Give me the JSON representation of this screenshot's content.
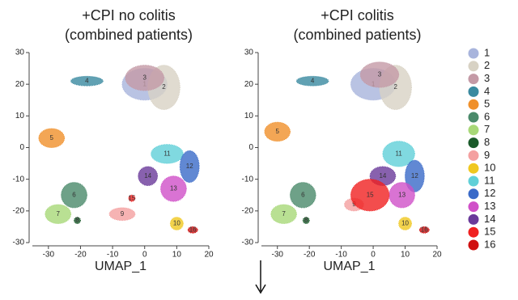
{
  "chart_data": [
    {
      "type": "scatter",
      "title": "+CPI no colitis",
      "subtitle": "(combined patients)",
      "xlabel": "UMAP_1",
      "xlim": [
        -35,
        20
      ],
      "ylim": [
        -30,
        30
      ],
      "xticks": [
        -30,
        -20,
        -10,
        0,
        10,
        20
      ],
      "yticks": [
        -30,
        -20,
        -10,
        0,
        10,
        20,
        30
      ],
      "series": [
        {
          "name": "1",
          "color": "#a8b4dc",
          "x": [
            0
          ],
          "values": [
            20
          ]
        },
        {
          "name": "2",
          "color": "#d8d2c4",
          "x": [
            6
          ],
          "values": [
            19
          ]
        },
        {
          "name": "3",
          "color": "#c49aa6",
          "x": [
            0
          ],
          "values": [
            22
          ]
        },
        {
          "name": "4",
          "color": "#3a8aa0",
          "x": [
            -18
          ],
          "values": [
            21
          ]
        },
        {
          "name": "5",
          "color": "#f0902a",
          "x": [
            -29
          ],
          "values": [
            3
          ]
        },
        {
          "name": "6",
          "color": "#4a8a6a",
          "x": [
            -22
          ],
          "values": [
            -15
          ]
        },
        {
          "name": "7",
          "color": "#a8d878",
          "x": [
            -27
          ],
          "values": [
            -21
          ]
        },
        {
          "name": "8",
          "color": "#1a5a2a",
          "x": [
            -21
          ],
          "values": [
            -23
          ]
        },
        {
          "name": "9",
          "color": "#f4a0a0",
          "x": [
            -7
          ],
          "values": [
            -21
          ]
        },
        {
          "name": "10",
          "color": "#f0c820",
          "x": [
            10
          ],
          "values": [
            -24
          ]
        },
        {
          "name": "11",
          "color": "#60d0d8",
          "x": [
            7
          ],
          "values": [
            -2
          ]
        },
        {
          "name": "12",
          "color": "#3a6ac8",
          "x": [
            14
          ],
          "values": [
            -6
          ]
        },
        {
          "name": "13",
          "color": "#d050c8",
          "x": [
            9
          ],
          "values": [
            -13
          ]
        },
        {
          "name": "14",
          "color": "#6a3a9a",
          "x": [
            1
          ],
          "values": [
            -9
          ]
        },
        {
          "name": "15",
          "color": "#f02020",
          "x": [
            -4
          ],
          "values": [
            -16
          ]
        },
        {
          "name": "16",
          "color": "#d01010",
          "x": [
            15
          ],
          "values": [
            -26
          ]
        }
      ]
    },
    {
      "type": "scatter",
      "title": "+CPI colitis",
      "subtitle": "(combined patients)",
      "xlabel": "UMAP_1",
      "xlim": [
        -35,
        20
      ],
      "ylim": [
        -30,
        30
      ],
      "xticks": [
        -30,
        -20,
        -10,
        0,
        10,
        20
      ],
      "yticks": [
        -30,
        -20,
        -10,
        0,
        10,
        20,
        30
      ],
      "series": [
        {
          "name": "1",
          "color": "#a8b4dc",
          "x": [
            0
          ],
          "values": [
            20
          ]
        },
        {
          "name": "2",
          "color": "#d8d2c4",
          "x": [
            7
          ],
          "values": [
            19
          ]
        },
        {
          "name": "3",
          "color": "#c49aa6",
          "x": [
            2
          ],
          "values": [
            23
          ]
        },
        {
          "name": "4",
          "color": "#3a8aa0",
          "x": [
            -19
          ],
          "values": [
            21
          ]
        },
        {
          "name": "5",
          "color": "#f0902a",
          "x": [
            -30
          ],
          "values": [
            5
          ]
        },
        {
          "name": "6",
          "color": "#4a8a6a",
          "x": [
            -22
          ],
          "values": [
            -15
          ]
        },
        {
          "name": "7",
          "color": "#a8d878",
          "x": [
            -28
          ],
          "values": [
            -21
          ]
        },
        {
          "name": "8",
          "color": "#1a5a2a",
          "x": [
            -21
          ],
          "values": [
            -23
          ]
        },
        {
          "name": "9",
          "color": "#f4a0a0",
          "x": [
            -6
          ],
          "values": [
            -18
          ]
        },
        {
          "name": "10",
          "color": "#f0c820",
          "x": [
            10
          ],
          "values": [
            -24
          ]
        },
        {
          "name": "11",
          "color": "#60d0d8",
          "x": [
            8
          ],
          "values": [
            -2
          ]
        },
        {
          "name": "12",
          "color": "#3a6ac8",
          "x": [
            13
          ],
          "values": [
            -9
          ]
        },
        {
          "name": "13",
          "color": "#d050c8",
          "x": [
            9
          ],
          "values": [
            -15
          ]
        },
        {
          "name": "14",
          "color": "#6a3a9a",
          "x": [
            3
          ],
          "values": [
            -9
          ]
        },
        {
          "name": "15",
          "color": "#f02020",
          "x": [
            -1
          ],
          "values": [
            -15
          ]
        },
        {
          "name": "16",
          "color": "#d01010",
          "x": [
            16
          ],
          "values": [
            -26
          ]
        }
      ]
    }
  ]
}
